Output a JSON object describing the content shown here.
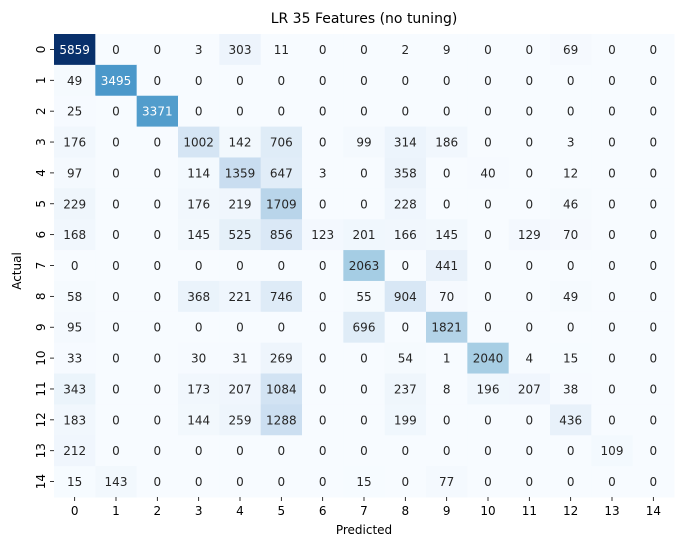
{
  "chart_data": {
    "type": "heatmap",
    "title": "LR 35 Features (no tuning)",
    "xlabel": "Predicted",
    "ylabel": "Actual",
    "x_categories": [
      "0",
      "1",
      "2",
      "3",
      "4",
      "5",
      "6",
      "7",
      "8",
      "9",
      "10",
      "11",
      "12",
      "13",
      "14"
    ],
    "y_categories": [
      "0",
      "1",
      "2",
      "3",
      "4",
      "5",
      "6",
      "7",
      "8",
      "9",
      "10",
      "11",
      "12",
      "13",
      "14"
    ],
    "colormap": "Blues",
    "color_min": 0,
    "color_max": 5859,
    "colorbar": false,
    "values": [
      [
        5859,
        0,
        0,
        3,
        303,
        11,
        0,
        0,
        2,
        9,
        0,
        0,
        69,
        0,
        0
      ],
      [
        49,
        3495,
        0,
        0,
        0,
        0,
        0,
        0,
        0,
        0,
        0,
        0,
        0,
        0,
        0
      ],
      [
        25,
        0,
        3371,
        0,
        0,
        0,
        0,
        0,
        0,
        0,
        0,
        0,
        0,
        0,
        0
      ],
      [
        176,
        0,
        0,
        1002,
        142,
        706,
        0,
        99,
        314,
        186,
        0,
        0,
        3,
        0,
        0
      ],
      [
        97,
        0,
        0,
        114,
        1359,
        647,
        3,
        0,
        358,
        0,
        40,
        0,
        12,
        0,
        0
      ],
      [
        229,
        0,
        0,
        176,
        219,
        1709,
        0,
        0,
        228,
        0,
        0,
        0,
        46,
        0,
        0
      ],
      [
        168,
        0,
        0,
        145,
        525,
        856,
        123,
        201,
        166,
        145,
        0,
        129,
        70,
        0,
        0
      ],
      [
        0,
        0,
        0,
        0,
        0,
        0,
        0,
        2063,
        0,
        441,
        0,
        0,
        0,
        0,
        0
      ],
      [
        58,
        0,
        0,
        368,
        221,
        746,
        0,
        55,
        904,
        70,
        0,
        0,
        49,
        0,
        0
      ],
      [
        95,
        0,
        0,
        0,
        0,
        0,
        0,
        696,
        0,
        1821,
        0,
        0,
        0,
        0,
        0
      ],
      [
        33,
        0,
        0,
        30,
        31,
        269,
        0,
        0,
        54,
        1,
        2040,
        4,
        15,
        0,
        0
      ],
      [
        343,
        0,
        0,
        173,
        207,
        1084,
        0,
        0,
        237,
        8,
        196,
        207,
        38,
        0,
        0
      ],
      [
        183,
        0,
        0,
        144,
        259,
        1288,
        0,
        0,
        199,
        0,
        0,
        0,
        436,
        0,
        0
      ],
      [
        212,
        0,
        0,
        0,
        0,
        0,
        0,
        0,
        0,
        0,
        0,
        0,
        0,
        109,
        0
      ],
      [
        15,
        143,
        0,
        0,
        0,
        0,
        0,
        15,
        0,
        77,
        0,
        0,
        0,
        0,
        0
      ]
    ]
  }
}
